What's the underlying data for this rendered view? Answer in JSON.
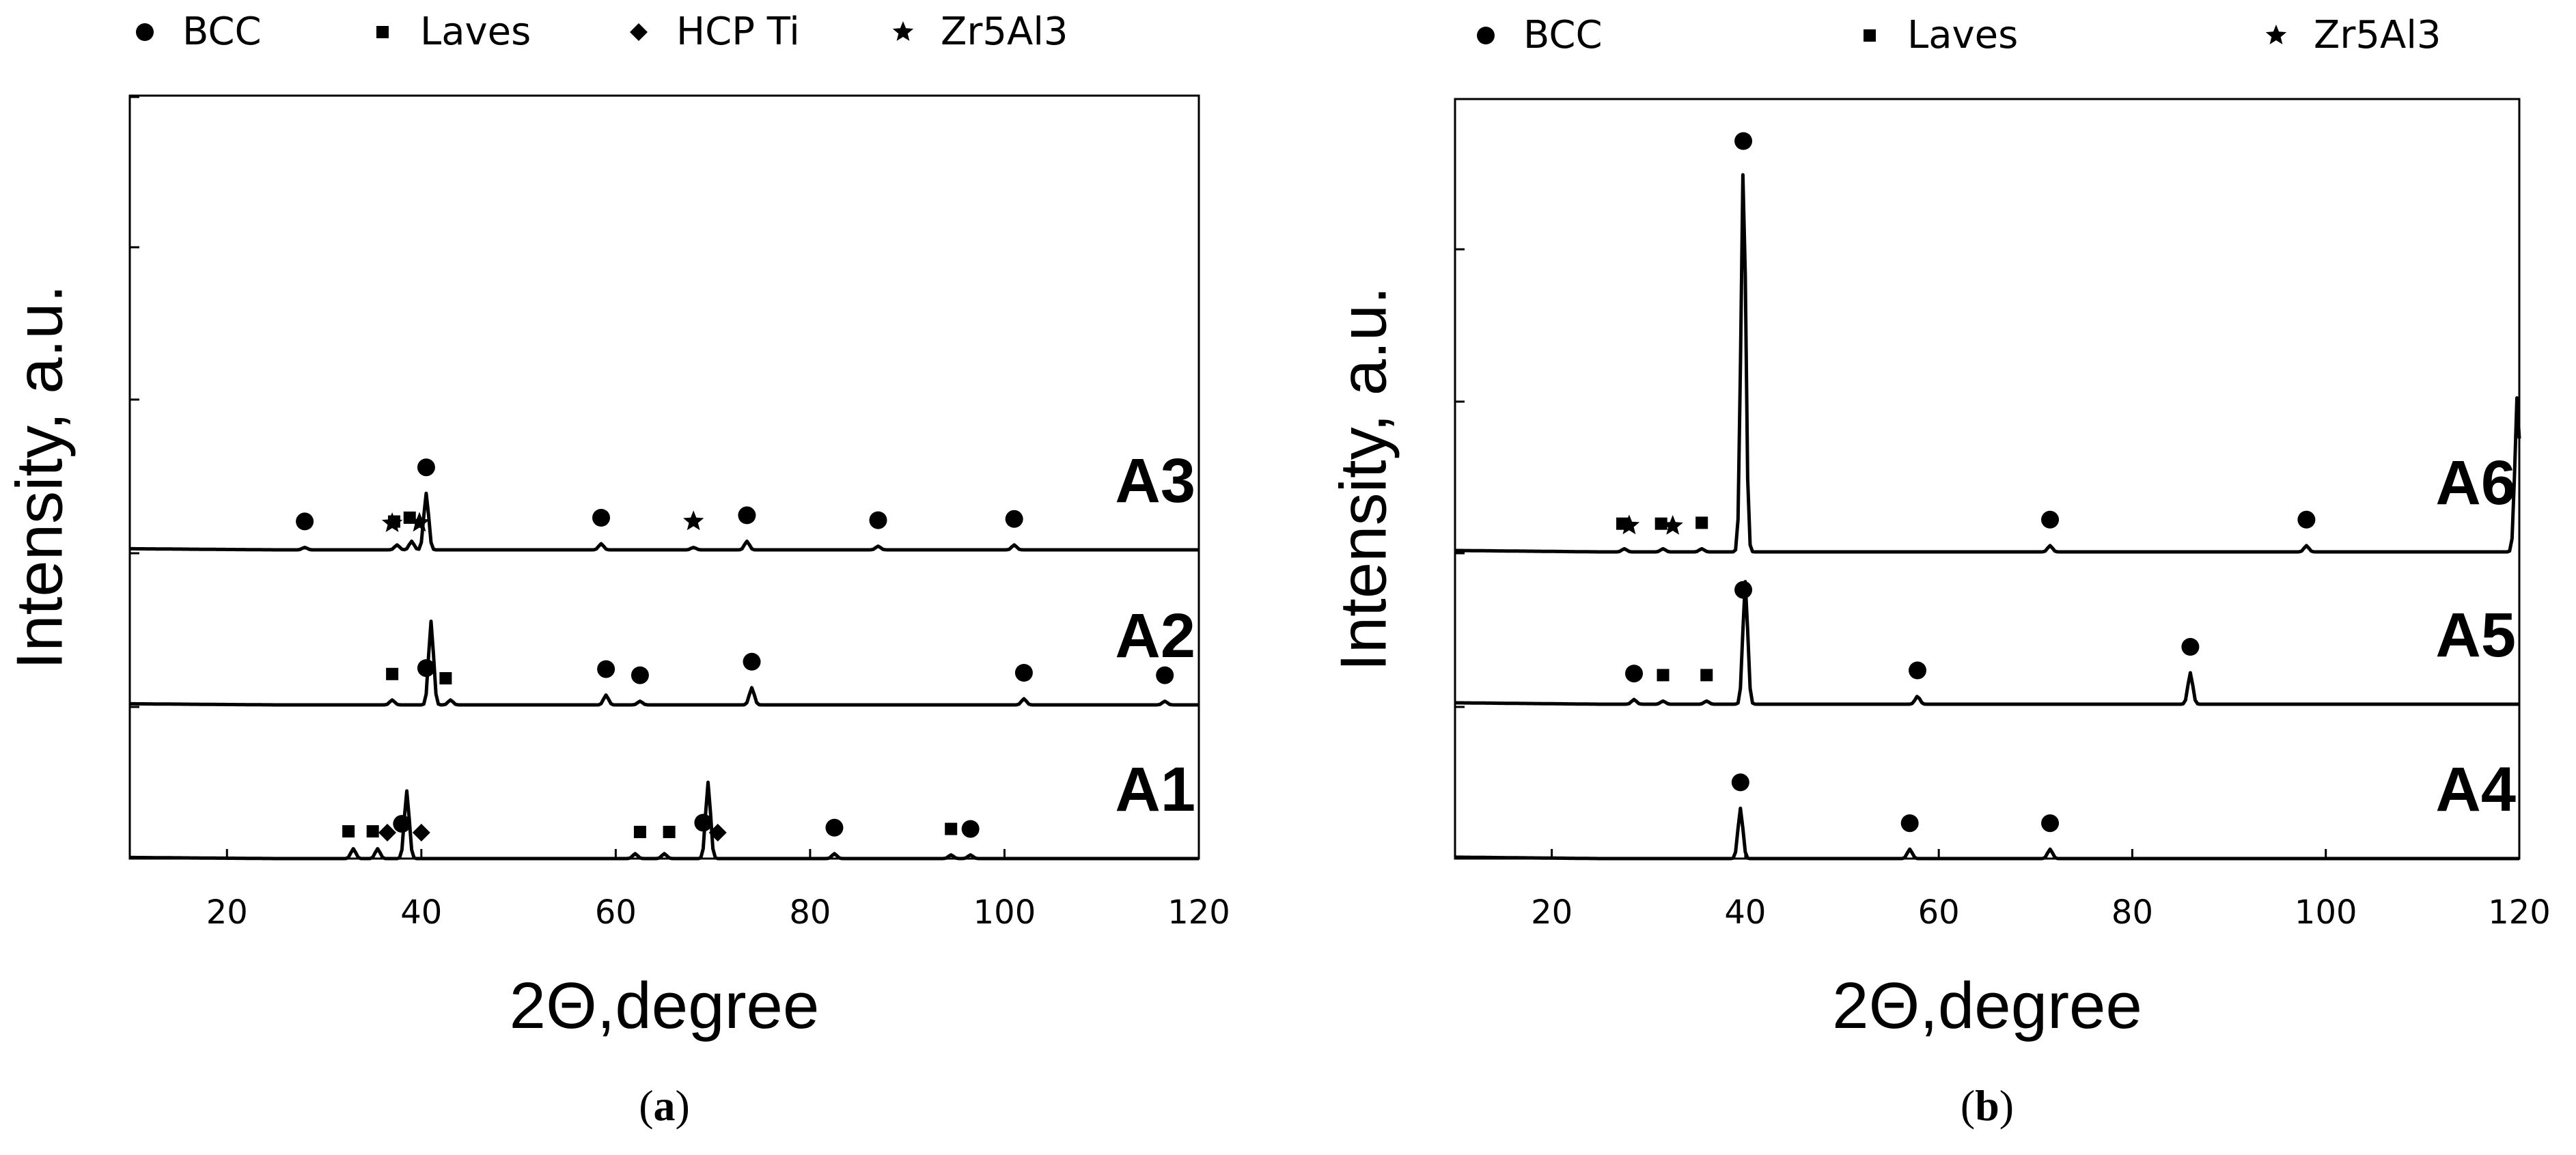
{
  "chart_data": [
    {
      "type": "line",
      "panel": "a",
      "caption_letter": "a",
      "xlabel": "2Θ,degree",
      "ylabel": "Intensity, a.u.",
      "xlim": [
        10,
        120
      ],
      "xticks": [
        20,
        40,
        60,
        80,
        100,
        120
      ],
      "legend": [
        {
          "marker": "circle",
          "label": "BCC"
        },
        {
          "marker": "square",
          "label": "Laves"
        },
        {
          "marker": "diamond",
          "label": "HCP Ti"
        },
        {
          "marker": "star",
          "label": "Zr5Al3"
        }
      ],
      "series": [
        {
          "name": "A1",
          "peaks": [
            {
              "x": 33,
              "h": 0.08
            },
            {
              "x": 35.5,
              "h": 0.08
            },
            {
              "x": 38.5,
              "h": 0.55
            },
            {
              "x": 62,
              "h": 0.04
            },
            {
              "x": 65,
              "h": 0.04
            },
            {
              "x": 69.5,
              "h": 0.62
            },
            {
              "x": 82.5,
              "h": 0.04
            },
            {
              "x": 94.5,
              "h": 0.03
            },
            {
              "x": 96.5,
              "h": 0.03
            }
          ],
          "markers": [
            {
              "x": 32.5,
              "type": "square"
            },
            {
              "x": 35,
              "type": "square"
            },
            {
              "x": 36.5,
              "type": "diamond"
            },
            {
              "x": 38,
              "type": "circle"
            },
            {
              "x": 40,
              "type": "diamond"
            },
            {
              "x": 62.5,
              "type": "square"
            },
            {
              "x": 65.5,
              "type": "square"
            },
            {
              "x": 69,
              "type": "circle"
            },
            {
              "x": 70.5,
              "type": "diamond"
            },
            {
              "x": 82.5,
              "type": "circle"
            },
            {
              "x": 94.5,
              "type": "square"
            },
            {
              "x": 96.5,
              "type": "circle"
            }
          ]
        },
        {
          "name": "A2",
          "peaks": [
            {
              "x": 37,
              "h": 0.04
            },
            {
              "x": 41,
              "h": 0.68
            },
            {
              "x": 43,
              "h": 0.04
            },
            {
              "x": 59,
              "h": 0.08
            },
            {
              "x": 62.5,
              "h": 0.03
            },
            {
              "x": 74,
              "h": 0.14
            },
            {
              "x": 102,
              "h": 0.05
            },
            {
              "x": 116.5,
              "h": 0.03
            }
          ],
          "markers": [
            {
              "x": 37,
              "type": "square"
            },
            {
              "x": 40.5,
              "type": "circle"
            },
            {
              "x": 42.5,
              "type": "square"
            },
            {
              "x": 59,
              "type": "circle"
            },
            {
              "x": 62.5,
              "type": "circle"
            },
            {
              "x": 74,
              "type": "circle"
            },
            {
              "x": 102,
              "type": "circle"
            },
            {
              "x": 116.5,
              "type": "circle"
            }
          ]
        },
        {
          "name": "A3",
          "peaks": [
            {
              "x": 28,
              "h": 0.02
            },
            {
              "x": 37.5,
              "h": 0.04
            },
            {
              "x": 39,
              "h": 0.07
            },
            {
              "x": 40.5,
              "h": 0.46
            },
            {
              "x": 58.5,
              "h": 0.05
            },
            {
              "x": 68,
              "h": 0.02
            },
            {
              "x": 73.5,
              "h": 0.07
            },
            {
              "x": 87,
              "h": 0.03
            },
            {
              "x": 101,
              "h": 0.04
            }
          ],
          "markers": [
            {
              "x": 28,
              "type": "circle"
            },
            {
              "x": 37,
              "type": "star"
            },
            {
              "x": 37.2,
              "type": "square"
            },
            {
              "x": 38.8,
              "type": "square"
            },
            {
              "x": 39.8,
              "type": "star"
            },
            {
              "x": 40.5,
              "type": "circle"
            },
            {
              "x": 58.5,
              "type": "circle"
            },
            {
              "x": 68,
              "type": "star"
            },
            {
              "x": 73.5,
              "type": "circle"
            },
            {
              "x": 87,
              "type": "circle"
            },
            {
              "x": 101,
              "type": "circle"
            }
          ]
        }
      ]
    },
    {
      "type": "line",
      "panel": "b",
      "caption_letter": "b",
      "xlabel": "2Θ,degree",
      "ylabel": "Intensity, a.u.",
      "xlim": [
        10,
        120
      ],
      "xticks": [
        20,
        40,
        60,
        80,
        100,
        120
      ],
      "legend": [
        {
          "marker": "circle",
          "label": "BCC"
        },
        {
          "marker": "square",
          "label": "Laves"
        },
        {
          "marker": "star",
          "label": "Zr5Al3"
        }
      ],
      "series": [
        {
          "name": "A4",
          "peaks": [
            {
              "x": 39.5,
              "h": 0.32
            },
            {
              "x": 57,
              "h": 0.06
            },
            {
              "x": 71.5,
              "h": 0.06
            }
          ],
          "markers": [
            {
              "x": 39.5,
              "type": "circle"
            },
            {
              "x": 57,
              "type": "circle"
            },
            {
              "x": 71.5,
              "type": "circle"
            }
          ]
        },
        {
          "name": "A5",
          "peaks": [
            {
              "x": 28.5,
              "h": 0.03
            },
            {
              "x": 31.5,
              "h": 0.02
            },
            {
              "x": 36,
              "h": 0.02
            },
            {
              "x": 40,
              "h": 0.78
            },
            {
              "x": 57.8,
              "h": 0.05
            },
            {
              "x": 86,
              "h": 0.2
            }
          ],
          "markers": [
            {
              "x": 28.5,
              "type": "circle"
            },
            {
              "x": 31.5,
              "type": "square"
            },
            {
              "x": 36,
              "type": "square"
            },
            {
              "x": 39.8,
              "type": "circle"
            },
            {
              "x": 57.8,
              "type": "circle"
            },
            {
              "x": 86,
              "type": "circle"
            }
          ]
        },
        {
          "name": "A6",
          "peaks": [
            {
              "x": 27.5,
              "h": 0.02
            },
            {
              "x": 31.5,
              "h": 0.02
            },
            {
              "x": 35.5,
              "h": 0.02
            },
            {
              "x": 39.8,
              "h": 2.45
            },
            {
              "x": 71.5,
              "h": 0.04
            },
            {
              "x": 98,
              "h": 0.04
            },
            {
              "x": 119.8,
              "h": 1.0
            }
          ],
          "markers": [
            {
              "x": 27.3,
              "type": "square"
            },
            {
              "x": 28,
              "type": "star"
            },
            {
              "x": 31.3,
              "type": "square"
            },
            {
              "x": 32.5,
              "type": "star"
            },
            {
              "x": 35.5,
              "type": "square"
            },
            {
              "x": 39.8,
              "type": "circle"
            },
            {
              "x": 71.5,
              "type": "circle"
            },
            {
              "x": 98,
              "type": "circle"
            }
          ]
        }
      ]
    }
  ]
}
